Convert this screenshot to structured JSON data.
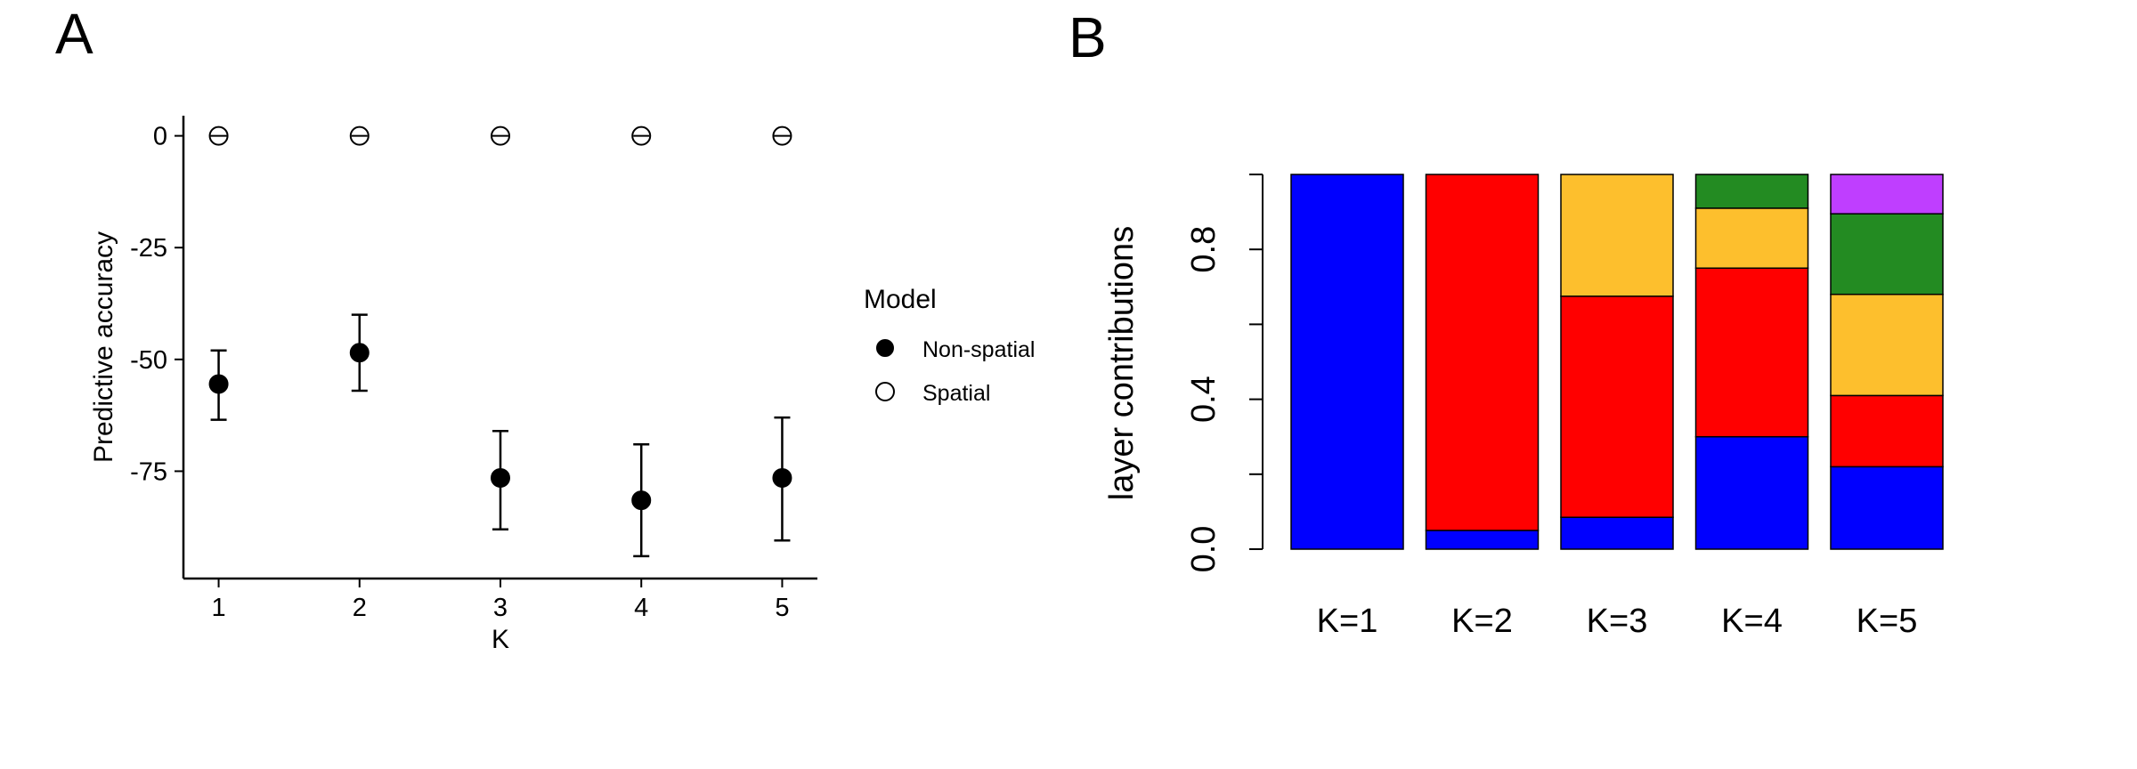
{
  "panels": {
    "a_label": "A",
    "b_label": "B"
  },
  "chart_data": [
    {
      "type": "scatter",
      "xlabel": "K",
      "ylabel": "Predictive accuracy",
      "x": [
        1,
        2,
        3,
        4,
        5
      ],
      "xticks": [
        "1",
        "2",
        "3",
        "4",
        "5"
      ],
      "yticks": [
        0,
        -25,
        -50,
        -75
      ],
      "ytick_labels": [
        "0",
        "-25",
        "-50",
        "-75"
      ],
      "ylim": [
        -99,
        4.5
      ],
      "xlim": [
        0.75,
        5.25
      ],
      "legend": {
        "title": "Model",
        "position": "right",
        "entries": [
          {
            "name": "Non-spatial",
            "marker": "filled-circle"
          },
          {
            "name": "Spatial",
            "marker": "open-circle"
          }
        ]
      },
      "series": [
        {
          "name": "Non-spatial",
          "marker": "filled-circle",
          "values": [
            -55.5,
            -48.5,
            -76.5,
            -81.5,
            -76.5
          ],
          "error_low": [
            -63.5,
            -57,
            -88,
            -94,
            -90.5
          ],
          "error_high": [
            -48,
            -40,
            -66,
            -69,
            -63
          ]
        },
        {
          "name": "Spatial",
          "marker": "open-circle",
          "values": [
            0,
            0,
            0,
            0,
            0
          ],
          "error_low": [
            0,
            0,
            0,
            0,
            0
          ],
          "error_high": [
            0,
            0,
            0,
            0,
            0
          ]
        }
      ]
    },
    {
      "type": "bar",
      "stacked": true,
      "ylabel": "layer contributions",
      "categories": [
        "K=1",
        "K=2",
        "K=3",
        "K=4",
        "K=5"
      ],
      "yticks": [
        0,
        0.2,
        0.4,
        0.6,
        0.8,
        1.0
      ],
      "ytick_labels": [
        "0.0",
        "",
        "0.4",
        "",
        "0.8",
        ""
      ],
      "ylim": [
        0,
        1
      ],
      "colors": [
        "#0000ff",
        "#ff0000",
        "#fdbf2d",
        "#238b22",
        "#bf3eff"
      ],
      "layers": [
        [
          1.0
        ],
        [
          0.05,
          0.95
        ],
        [
          0.085,
          0.59,
          0.325
        ],
        [
          0.3,
          0.45,
          0.16,
          0.09
        ],
        [
          0.22,
          0.19,
          0.27,
          0.215,
          0.105
        ]
      ]
    }
  ]
}
